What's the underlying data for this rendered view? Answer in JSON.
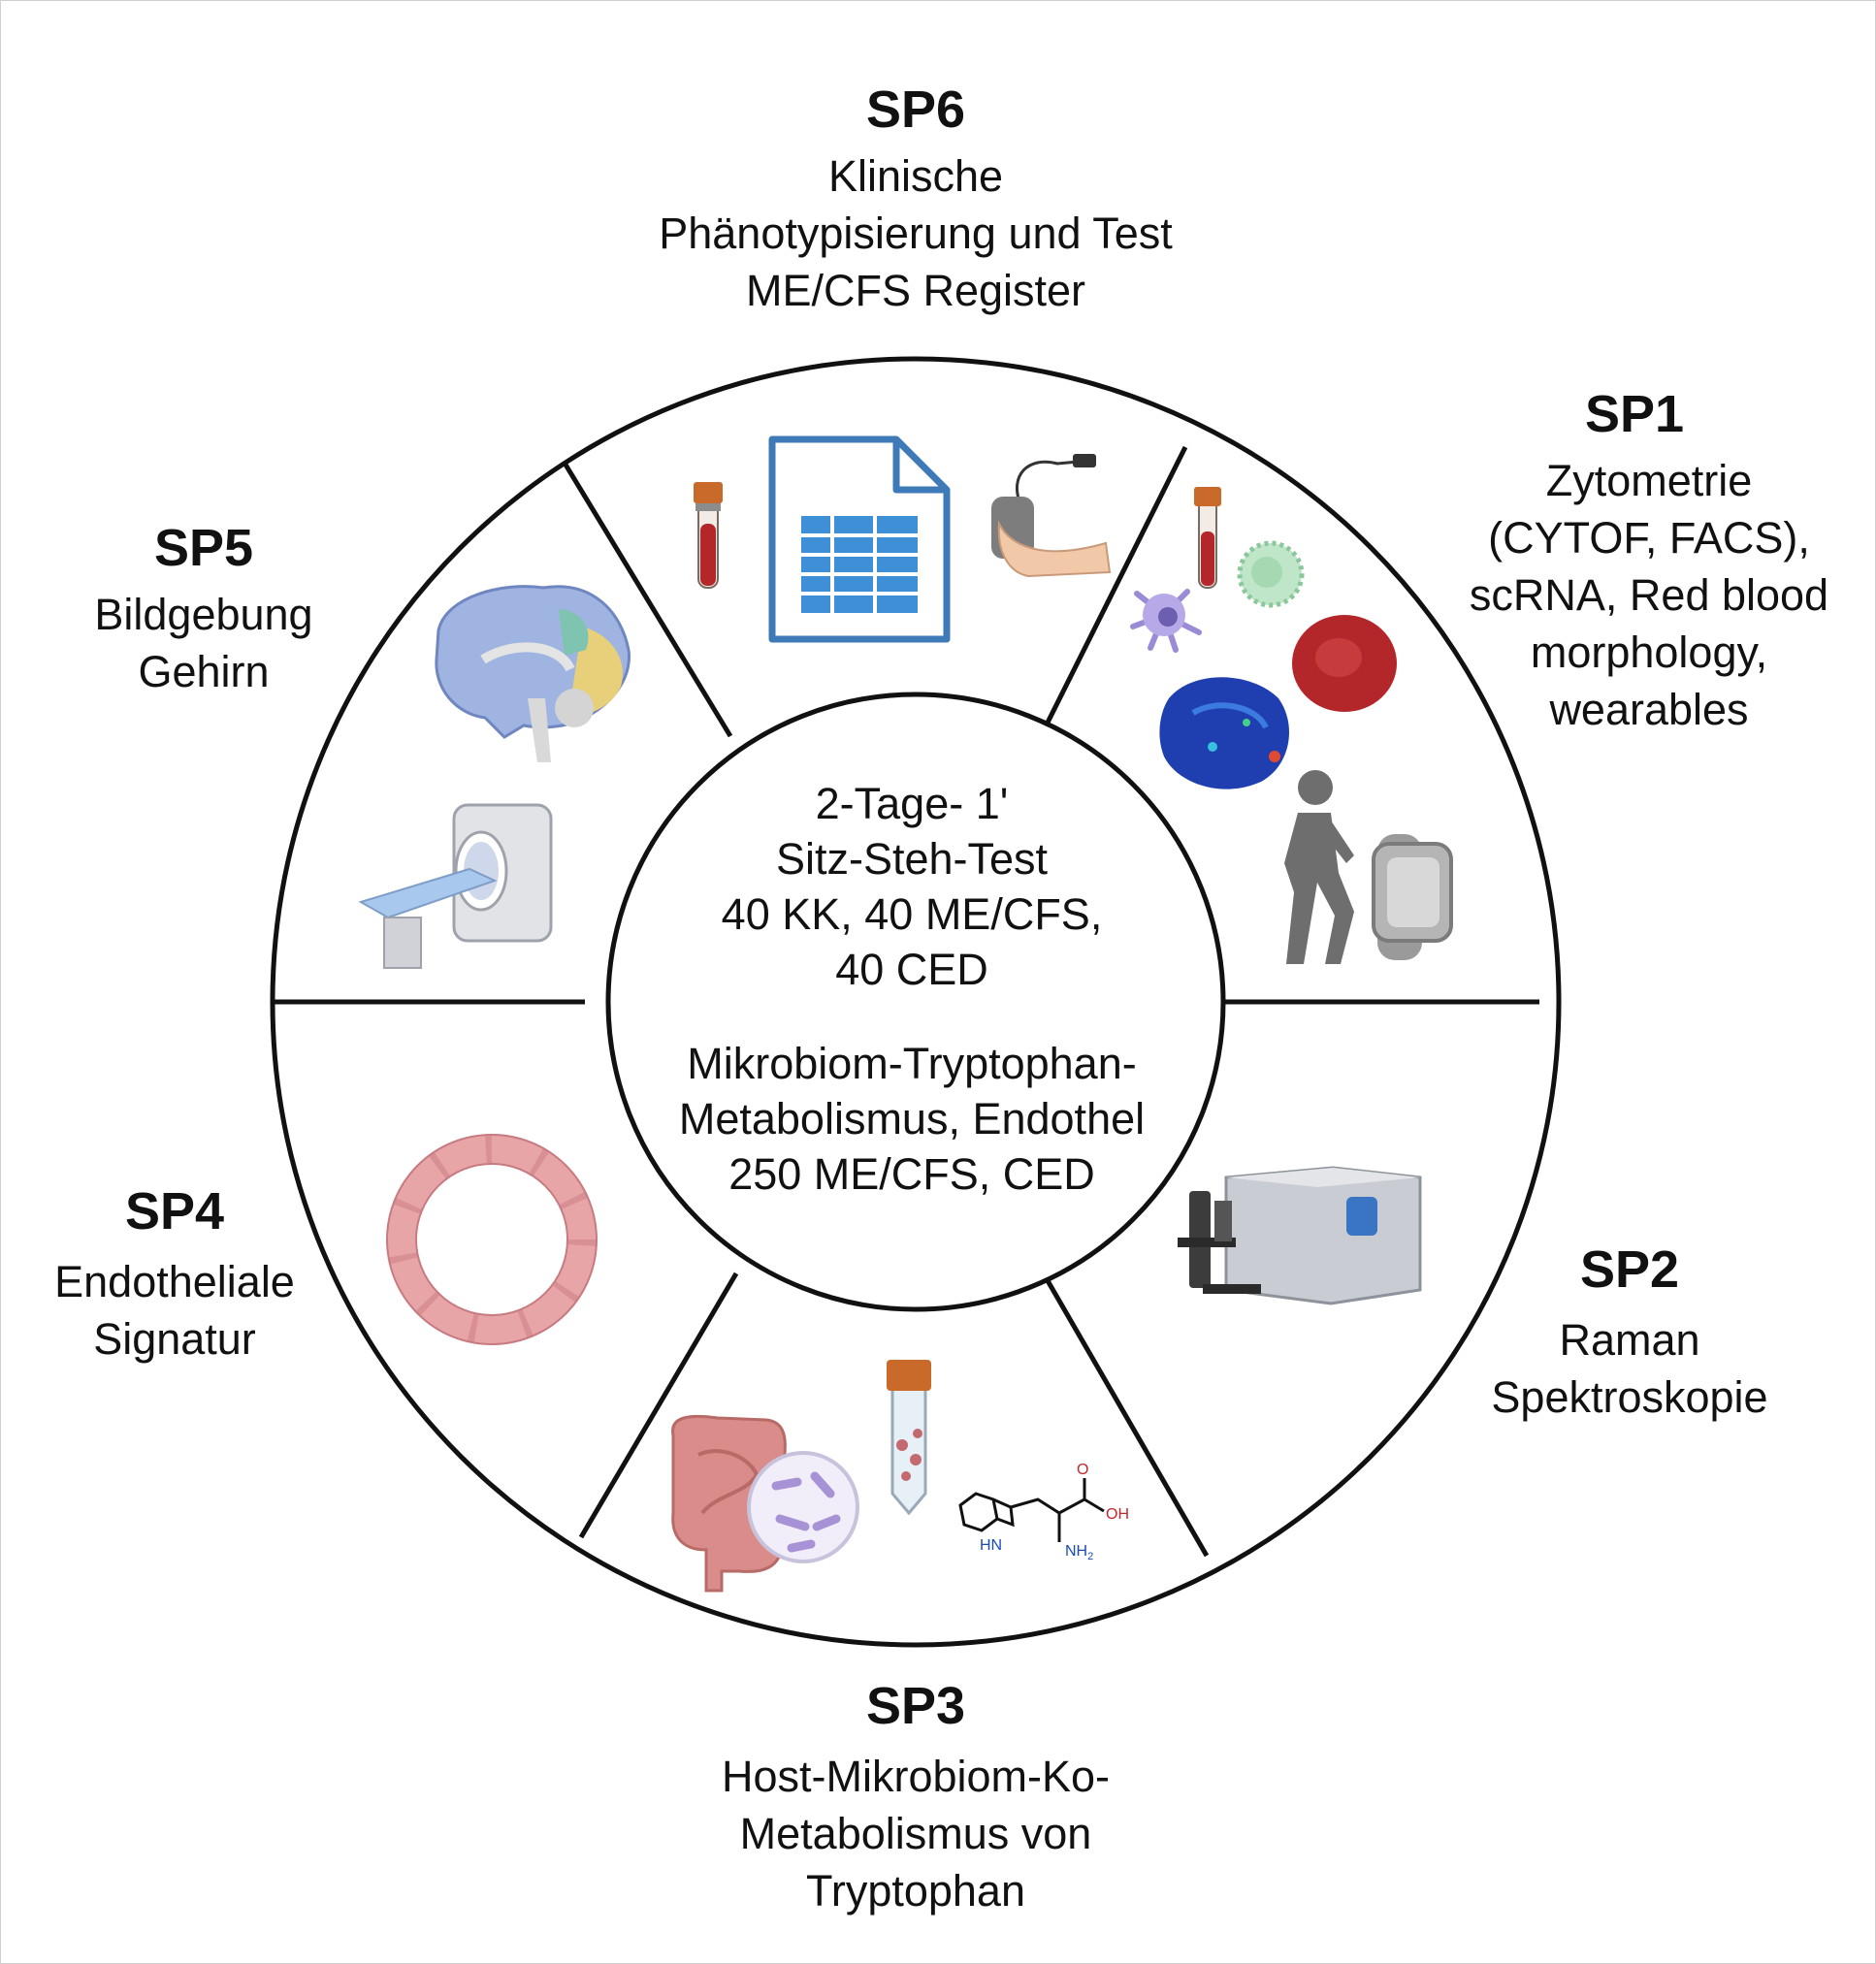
{
  "sections": [
    {
      "id": "SP6",
      "lines": [
        "Klinische",
        "Phänotypisierung und Test",
        "ME/CFS Register"
      ],
      "icons": [
        "blood-tube-icon",
        "spreadsheet-document-icon",
        "handgrip-dynamometer-icon"
      ]
    },
    {
      "id": "SP1",
      "lines": [
        "Zytometrie",
        "(CYTOF, FACS),",
        "scRNA, Red blood",
        "morphology,",
        "wearables"
      ],
      "icons": [
        "blood-tube-icon",
        "immune-cell-icon",
        "red-blood-cell-icon",
        "cytometry-plot-icon",
        "walking-person-icon",
        "smartwatch-icon"
      ]
    },
    {
      "id": "SP2",
      "lines": [
        "Raman",
        "Spektroskopie"
      ],
      "icons": [
        "raman-microscope-icon"
      ]
    },
    {
      "id": "SP3",
      "lines": [
        "Host-Mikrobiom-Ko-",
        "Metabolismus von",
        "Tryptophan"
      ],
      "icons": [
        "intestine-icon",
        "bacteria-icon",
        "sample-tube-icon",
        "tryptophan-molecule-icon"
      ]
    },
    {
      "id": "SP4",
      "lines": [
        "Endotheliale",
        "Signatur"
      ],
      "icons": [
        "endothelial-vessel-icon"
      ]
    },
    {
      "id": "SP5",
      "lines": [
        "Bildgebung",
        "Gehirn"
      ],
      "icons": [
        "brain-icon",
        "mri-scanner-icon"
      ]
    }
  ],
  "center": {
    "block1": [
      "2-Tage- 1'",
      "Sitz-Steh-Test",
      "40 KK, 40 ME/CFS,",
      "40 CED"
    ],
    "block2": [
      "Mikrobiom-Tryptophan-",
      "Metabolismus, Endothel",
      "250 ME/CFS, CED"
    ]
  },
  "molecule_labels": {
    "o": "O",
    "oh": "OH",
    "hn": "HN",
    "nh2": "NH",
    "nh2_sub": "2"
  },
  "colors": {
    "ring": "#111111",
    "doc_blue": "#3f7ab8",
    "blood_red": "#b3262a",
    "tube_cap": "#c96a2b",
    "endothelium": "#e8a5a8"
  }
}
